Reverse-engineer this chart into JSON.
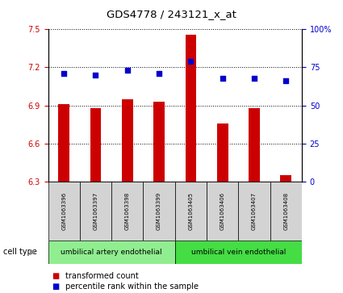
{
  "title": "GDS4778 / 243121_x_at",
  "samples": [
    "GSM1063396",
    "GSM1063397",
    "GSM1063398",
    "GSM1063399",
    "GSM1063405",
    "GSM1063406",
    "GSM1063407",
    "GSM1063408"
  ],
  "transformed_count": [
    6.91,
    6.88,
    6.95,
    6.93,
    7.46,
    6.76,
    6.88,
    6.35
  ],
  "percentile_rank": [
    71,
    70,
    73,
    71,
    79,
    68,
    68,
    66
  ],
  "ylim_left": [
    6.3,
    7.5
  ],
  "yticks_left": [
    6.3,
    6.6,
    6.9,
    7.2,
    7.5
  ],
  "ylim_right": [
    0,
    100
  ],
  "yticks_right": [
    0,
    25,
    50,
    75,
    100
  ],
  "bar_color": "#cc0000",
  "dot_color": "#0000cc",
  "bar_bottom": 6.3,
  "cell_type_groups": [
    {
      "label": "umbilical artery endothelial",
      "color": "#90ee90"
    },
    {
      "label": "umbilical vein endothelial",
      "color": "#44dd44"
    }
  ],
  "cell_type_label": "cell type",
  "legend_bar_label": "transformed count",
  "legend_dot_label": "percentile rank within the sample",
  "tick_color_left": "#cc0000",
  "tick_color_right": "#0000cc",
  "bg_color_sample": "#d3d3d3",
  "group_split": 4
}
